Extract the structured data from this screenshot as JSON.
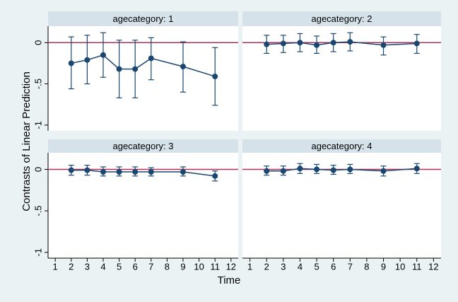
{
  "xlabel": "Time",
  "ylabel": "Contrasts of Linear Prediction",
  "chart_data": [
    {
      "type": "line",
      "title": "agecategory: 1",
      "x": [
        2,
        3,
        4,
        5,
        6,
        7,
        9,
        11
      ],
      "color": "#1a476f",
      "values": [
        -0.25,
        -0.21,
        -0.15,
        -0.32,
        -0.32,
        -0.19,
        -0.29,
        -0.41
      ],
      "lower": [
        -0.56,
        -0.5,
        -0.42,
        -0.67,
        -0.67,
        -0.45,
        -0.6,
        -0.76
      ],
      "upper": [
        0.07,
        0.09,
        0.12,
        0.03,
        0.03,
        0.06,
        0.01,
        -0.06
      ],
      "xlim": [
        0.55,
        12.45
      ],
      "ylim": [
        -1.07,
        0.2
      ],
      "yticks": [
        0,
        {
          "value": -0.5,
          "label": "-.5"
        },
        -1
      ],
      "refline": 0,
      "refline_color": "#b0305c"
    },
    {
      "type": "line",
      "title": "agecategory: 2",
      "x": [
        2,
        3,
        4,
        5,
        6,
        7,
        9,
        11
      ],
      "color": "#1a476f",
      "values": [
        -0.02,
        -0.01,
        0,
        -0.03,
        0,
        0.01,
        -0.03,
        -0.01
      ],
      "lower": [
        -0.13,
        -0.12,
        -0.11,
        -0.13,
        -0.11,
        -0.1,
        -0.15,
        -0.13
      ],
      "upper": [
        0.09,
        0.09,
        0.11,
        0.08,
        0.11,
        0.12,
        0.07,
        0.1
      ],
      "xlim": [
        0.55,
        12.45
      ],
      "ylim": [
        -1.07,
        0.2
      ],
      "refline": 0,
      "refline_color": "#b0305c"
    },
    {
      "type": "line",
      "title": "agecategory: 3",
      "x": [
        2,
        3,
        4,
        5,
        6,
        7,
        9,
        11
      ],
      "color": "#1a476f",
      "values": [
        -0.01,
        -0.01,
        -0.03,
        -0.03,
        -0.03,
        -0.03,
        -0.03,
        -0.08
      ],
      "lower": [
        -0.07,
        -0.07,
        -0.08,
        -0.08,
        -0.08,
        -0.08,
        -0.08,
        -0.14
      ],
      "upper": [
        0.05,
        0.05,
        0.03,
        0.03,
        0.03,
        0.02,
        0.03,
        -0.02
      ],
      "xlim": [
        0.55,
        12.45
      ],
      "ylim": [
        -1.07,
        0.2
      ],
      "yticks": [
        0,
        {
          "value": -0.5,
          "label": "-.5"
        },
        -1
      ],
      "xticks": [
        1,
        2,
        3,
        4,
        5,
        6,
        7,
        8,
        9,
        10,
        11,
        12
      ],
      "refline": 0,
      "refline_color": "#b0305c"
    },
    {
      "type": "line",
      "title": "agecategory: 4",
      "x": [
        2,
        3,
        4,
        5,
        6,
        7,
        9,
        11
      ],
      "color": "#1a476f",
      "values": [
        -0.02,
        -0.02,
        0.01,
        0,
        -0.01,
        0,
        -0.02,
        0.01
      ],
      "lower": [
        -0.07,
        -0.07,
        -0.05,
        -0.05,
        -0.06,
        -0.05,
        -0.08,
        -0.05
      ],
      "upper": [
        0.04,
        0.04,
        0.07,
        0.06,
        0.05,
        0.06,
        0.04,
        0.07
      ],
      "xlim": [
        0.55,
        12.45
      ],
      "ylim": [
        -1.07,
        0.2
      ],
      "xticks": [
        1,
        2,
        3,
        4,
        5,
        6,
        7,
        8,
        9,
        10,
        11,
        12
      ],
      "refline": 0,
      "refline_color": "#b0305c"
    }
  ]
}
